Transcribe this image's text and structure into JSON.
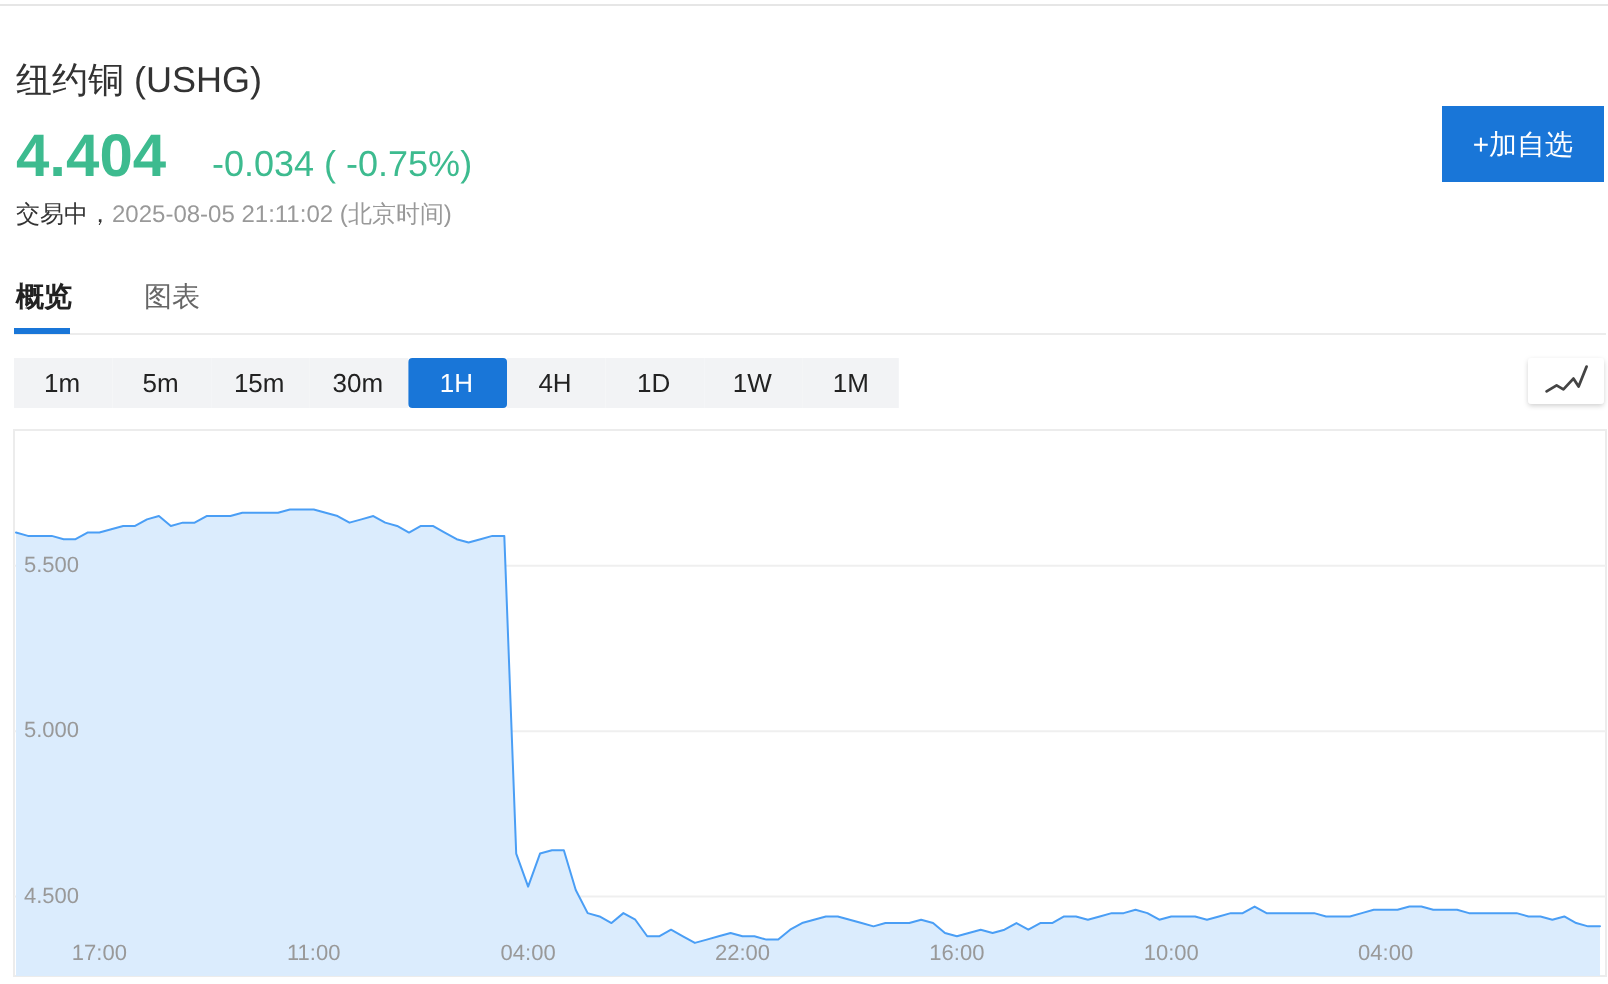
{
  "chart_data": {
    "type": "area",
    "title": "纽约铜 (USHG)",
    "annotations": [
      "4.404",
      "-0.034 ( -0.75%)",
      "交易中，",
      "2025-08-05 21:11:02 (北京时间)",
      "+加自选",
      "概览",
      "图表",
      "1m",
      "5m",
      "15m",
      "30m",
      "1H",
      "4H",
      "1D",
      "1W",
      "1M"
    ],
    "categories": [
      null,
      null,
      null,
      null,
      null,
      null,
      null,
      "17:00",
      null,
      null,
      null,
      null,
      null,
      null,
      null,
      null,
      null,
      null,
      null,
      null,
      null,
      null,
      null,
      null,
      null,
      "11:00",
      null,
      null,
      null,
      null,
      null,
      null,
      null,
      null,
      null,
      null,
      null,
      null,
      null,
      null,
      null,
      null,
      null,
      "04:00",
      null,
      null,
      null,
      null,
      null,
      null,
      null,
      null,
      null,
      null,
      null,
      null,
      null,
      null,
      null,
      null,
      null,
      "22:00",
      null,
      null,
      null,
      null,
      null,
      null,
      null,
      null,
      null,
      null,
      null,
      null,
      null,
      null,
      null,
      null,
      null,
      "16:00",
      null,
      null,
      null,
      null,
      null,
      null,
      null,
      null,
      null,
      null,
      null,
      null,
      null,
      null,
      null,
      null,
      null,
      "10:00",
      null,
      null,
      null,
      null,
      null,
      null,
      null,
      null,
      null,
      null,
      null,
      null,
      null,
      null,
      null,
      null,
      null,
      "04:00",
      null,
      null,
      null,
      null,
      null,
      null,
      null,
      null,
      null,
      null,
      null,
      null,
      null,
      null,
      null,
      null,
      null,
      null
    ],
    "values": [
      5.6,
      5.59,
      5.59,
      5.59,
      5.58,
      5.58,
      5.6,
      5.6,
      5.61,
      5.62,
      5.62,
      5.64,
      5.65,
      5.62,
      5.63,
      5.63,
      5.65,
      5.65,
      5.65,
      5.66,
      5.66,
      5.66,
      5.66,
      5.67,
      5.67,
      5.67,
      5.66,
      5.65,
      5.63,
      5.64,
      5.65,
      5.63,
      5.62,
      5.6,
      5.62,
      5.62,
      5.6,
      5.58,
      5.57,
      5.58,
      5.59,
      5.59,
      4.63,
      4.53,
      4.63,
      4.64,
      4.64,
      4.52,
      4.45,
      4.44,
      4.42,
      4.45,
      4.43,
      4.38,
      4.38,
      4.4,
      4.38,
      4.36,
      4.37,
      4.38,
      4.39,
      4.38,
      4.38,
      4.37,
      4.37,
      4.4,
      4.42,
      4.43,
      4.44,
      4.44,
      4.43,
      4.42,
      4.41,
      4.42,
      4.42,
      4.42,
      4.43,
      4.42,
      4.39,
      4.38,
      4.39,
      4.4,
      4.39,
      4.4,
      4.42,
      4.4,
      4.42,
      4.42,
      4.44,
      4.44,
      4.43,
      4.44,
      4.45,
      4.45,
      4.46,
      4.45,
      4.43,
      4.44,
      4.44,
      4.44,
      4.43,
      4.44,
      4.45,
      4.45,
      4.47,
      4.45,
      4.45,
      4.45,
      4.45,
      4.45,
      4.44,
      4.44,
      4.44,
      4.45,
      4.46,
      4.46,
      4.46,
      4.47,
      4.47,
      4.46,
      4.46,
      4.46,
      4.45,
      4.45,
      4.45,
      4.45,
      4.45,
      4.44,
      4.44,
      4.43,
      4.44,
      4.42,
      4.41,
      4.41
    ],
    "color": "#4a9ef5",
    "ylim": [
      4.26,
      5.91
    ],
    "yticks": [
      {
        "value": 4.5,
        "label": "4.500"
      },
      {
        "value": 5,
        "label": "5.000"
      },
      {
        "value": 5.5,
        "label": "5.500"
      }
    ],
    "grid": "y"
  }
}
